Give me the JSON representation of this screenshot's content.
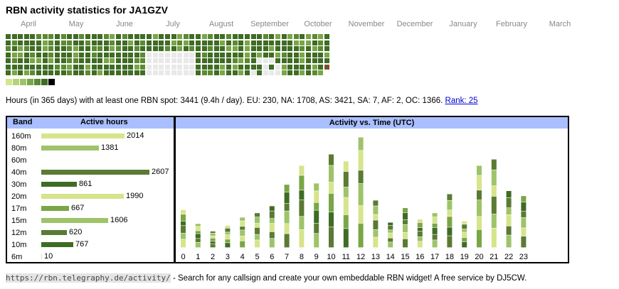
{
  "title": "RBN activity statistics for JA1GZV",
  "months": [
    "April",
    "May",
    "June",
    "July",
    "August",
    "September",
    "October",
    "November",
    "December",
    "January",
    "February",
    "March"
  ],
  "heatmap_colors": {
    "empty": "#e9e9e9",
    "c1": "#d6e48b",
    "c2": "#9ec369",
    "c3": "#7aa646",
    "c4": "#5b8a32",
    "c5": "#3f6c24",
    "today": "#c0392b"
  },
  "legend_colors": [
    "#d6e48b",
    "#b5d27a",
    "#9ec369",
    "#7aa646",
    "#5b8a32",
    "#3f6c24",
    "#000000"
  ],
  "summary": {
    "text": "Hours (in 365 days) with at least one RBN spot: 3441 (9.4h / day). EU: 230, NA: 1708, AS: 3421, SA: 7, AF: 2, OC: 1366. ",
    "rank_link": "Rank: 25"
  },
  "band_table": {
    "header_band": "Band",
    "header_hours": "Active hours",
    "rows": [
      {
        "band": "160m",
        "hours": 2014,
        "hours_label": "2014",
        "color": "#d6e48b"
      },
      {
        "band": "80m",
        "hours": 1381,
        "hours_label": "1381",
        "color": "#9ec369"
      },
      {
        "band": "60m",
        "hours": 0,
        "hours_label": "",
        "color": "#7aa646"
      },
      {
        "band": "40m",
        "hours": 2607,
        "hours_label": "2607",
        "color": "#5b7a34"
      },
      {
        "band": "30m",
        "hours": 861,
        "hours_label": "861",
        "color": "#3f6c24"
      },
      {
        "band": "20m",
        "hours": 1990,
        "hours_label": "1990",
        "color": "#d6e48b"
      },
      {
        "band": "17m",
        "hours": 667,
        "hours_label": "667",
        "color": "#7aa646"
      },
      {
        "band": "15m",
        "hours": 1606,
        "hours_label": "1606",
        "color": "#9ec369"
      },
      {
        "band": "12m",
        "hours": 620,
        "hours_label": "620",
        "color": "#5b7a34"
      },
      {
        "band": "10m",
        "hours": 767,
        "hours_label": "767",
        "color": "#3f6c24"
      },
      {
        "band": "6m",
        "hours": 10,
        "hours_label": "10",
        "color": "#d6e48b"
      }
    ]
  },
  "chart_data": {
    "type": "bar",
    "title": "Activity vs. Time (UTC)",
    "categories": [
      "0",
      "1",
      "2",
      "3",
      "4",
      "5",
      "6",
      "7",
      "8",
      "9",
      "10",
      "11",
      "12",
      "13",
      "14",
      "15",
      "16",
      "17",
      "18",
      "19",
      "20",
      "21",
      "22",
      "23"
    ],
    "values": [
      60,
      38,
      26,
      35,
      48,
      55,
      66,
      100,
      130,
      102,
      148,
      137,
      175,
      75,
      40,
      63,
      45,
      55,
      85,
      42,
      130,
      140,
      90,
      82
    ],
    "ylim": [
      0,
      180
    ],
    "segment_colors": [
      "#d6e48b",
      "#9ec369",
      "#5b7a34",
      "#3f6c24",
      "#7aa646",
      "#d6e48b",
      "#9ec369",
      "#5b7a34"
    ]
  },
  "footer": {
    "url": "https://rbn.telegraphy.de/activity/",
    "text": " - Search for any callsign and create your own embeddable RBN widget! A free service by DJ5CW."
  }
}
